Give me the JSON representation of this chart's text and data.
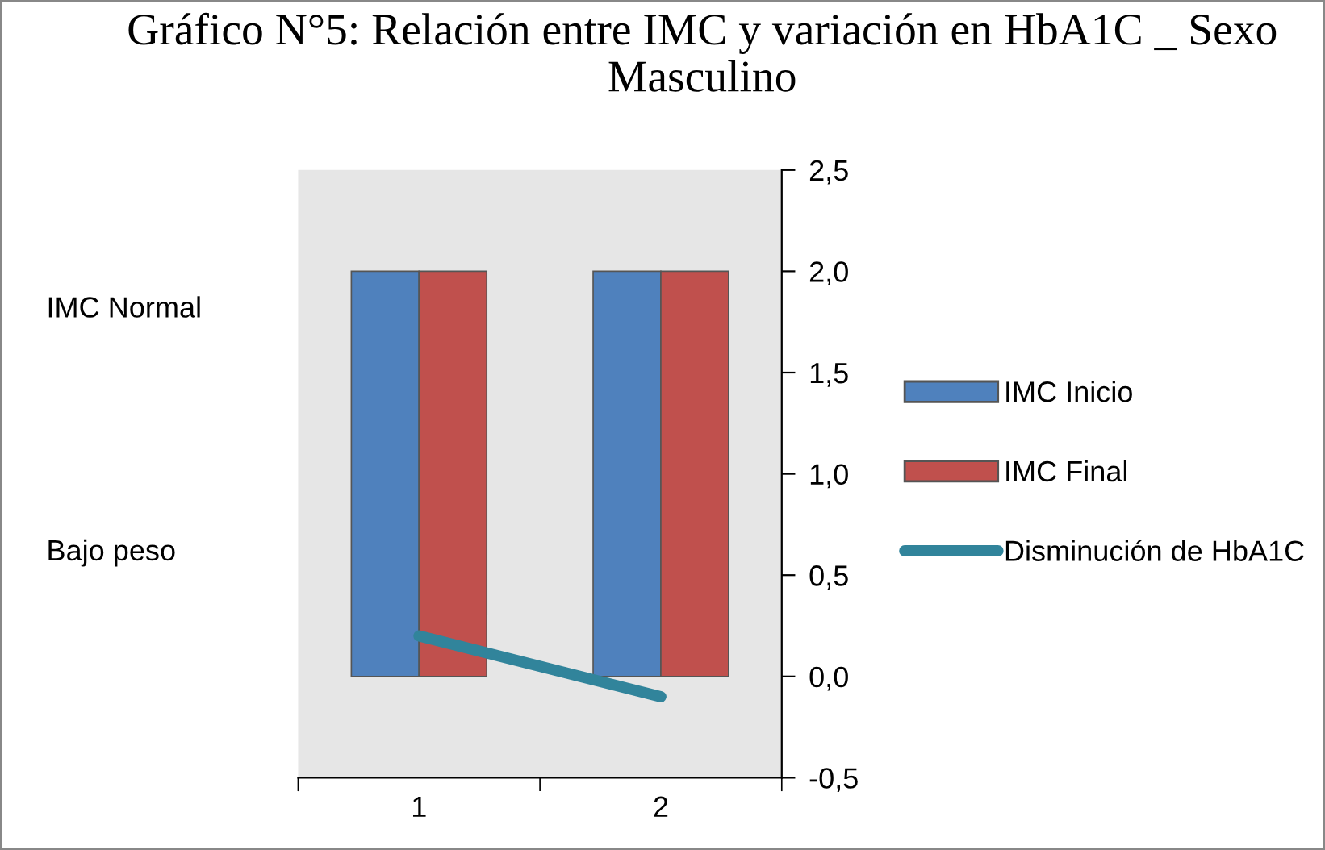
{
  "chart_data": {
    "type": "bar",
    "title": "Gráfico N°5: Relación entre IMC y variación en HbA1C _ Sexo Masculino",
    "categories": [
      "1",
      "2"
    ],
    "series": [
      {
        "name": "IMC Inicio",
        "color": "#4f81bd",
        "values": [
          2.0,
          2.0
        ]
      },
      {
        "name": "IMC Final",
        "color": "#c0504d",
        "values": [
          2.0,
          2.0
        ]
      },
      {
        "name": "Disminución de HbA1C",
        "color": "#31849b",
        "type": "line",
        "values": [
          0.2,
          -0.1
        ]
      }
    ],
    "ylim": [
      -0.5,
      2.5
    ],
    "yticks": [
      {
        "value": -0.5,
        "label": "-0,5"
      },
      {
        "value": 0,
        "label": "0,0"
      },
      {
        "value": 0.5,
        "label": "0,5"
      },
      {
        "value": 1,
        "label": "1,0"
      },
      {
        "value": 1.5,
        "label": "1,5"
      },
      {
        "value": 2,
        "label": "2,0"
      },
      {
        "value": 2.5,
        "label": "2,5"
      }
    ],
    "annotations": [
      "IMC Normal",
      "Bajo peso"
    ],
    "legend": "right",
    "grid": false
  }
}
